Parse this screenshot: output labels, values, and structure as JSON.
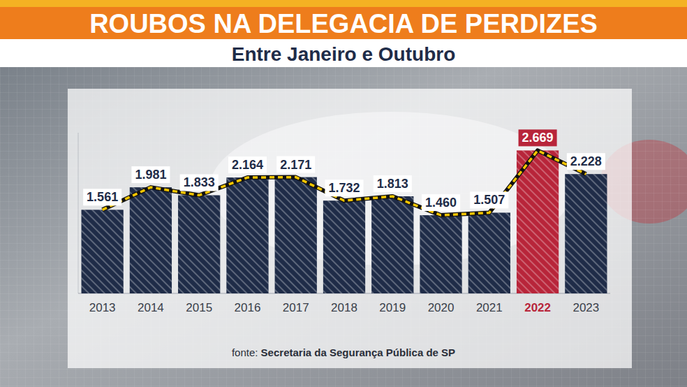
{
  "chart_data": {
    "type": "bar",
    "title": "ROUBOS NA DELEGACIA DE PERDIZES",
    "subtitle": "Entre Janeiro e Outubro",
    "categories": [
      "2013",
      "2014",
      "2015",
      "2016",
      "2017",
      "2018",
      "2019",
      "2020",
      "2021",
      "2022",
      "2023"
    ],
    "values": [
      1561,
      1981,
      1833,
      2164,
      2171,
      1732,
      1813,
      1460,
      1507,
      2669,
      2228
    ],
    "value_labels": [
      "1.561",
      "1.981",
      "1.833",
      "2.164",
      "2.171",
      "1.732",
      "1.813",
      "1.460",
      "1.507",
      "2.669",
      "2.228"
    ],
    "color": "#1f2c48",
    "colors": [
      "#1f2c48",
      "#1f2c48",
      "#1f2c48",
      "#1f2c48",
      "#1f2c48",
      "#1f2c48",
      "#1f2c48",
      "#1f2c48",
      "#1f2c48",
      "#b8253a",
      "#1f2c48"
    ],
    "ylim": [
      0,
      3000
    ],
    "data_labels": true,
    "tick_labels": "x",
    "grid": false,
    "source_label": "fonte:",
    "source": "Secretaria da Segurança Pública de SP"
  }
}
